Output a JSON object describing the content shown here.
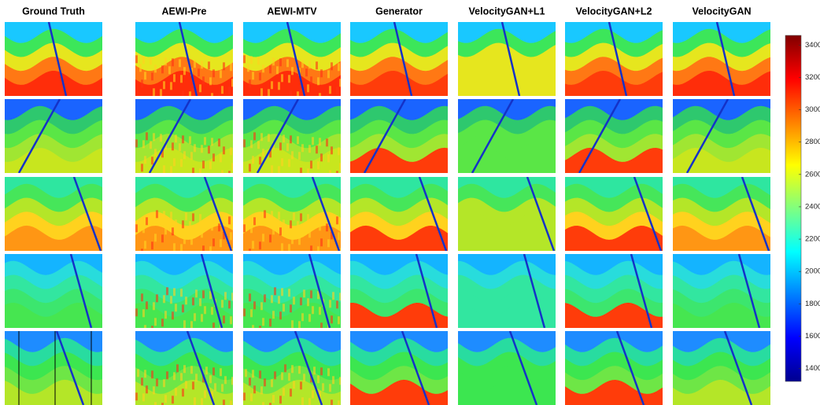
{
  "columns": [
    "Ground Truth",
    "AEWI-Pre",
    "AEWI-MTV",
    "Generator",
    "VelocityGAN+L1",
    "VelocityGAN+L2",
    "VelocityGAN"
  ],
  "colorbar": {
    "lim": [
      1320,
      3460
    ],
    "ticks": [
      1400,
      1600,
      1800,
      2000,
      2200,
      2400,
      2600,
      2800,
      3000,
      3200,
      3400
    ]
  }
}
